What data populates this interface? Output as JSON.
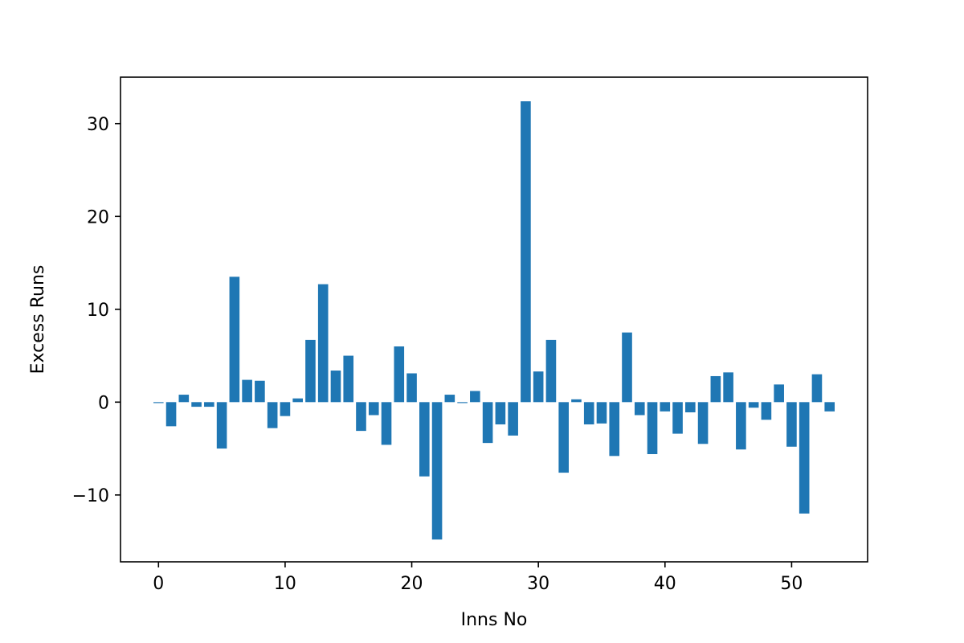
{
  "chart_data": {
    "type": "bar",
    "title": "",
    "xlabel": "Inns No",
    "ylabel": "Excess Runs",
    "xlim": [
      -3,
      56
    ],
    "ylim": [
      -17.2,
      35
    ],
    "xticks": [
      0,
      10,
      20,
      30,
      40,
      50
    ],
    "yticks": [
      -10,
      0,
      10,
      20,
      30
    ],
    "ytick_labels": [
      "−10",
      "0",
      "10",
      "20",
      "30"
    ],
    "bar_color": "#1f77b4",
    "grid": false,
    "legend": "none",
    "x": [
      0,
      1,
      2,
      3,
      4,
      5,
      6,
      7,
      8,
      9,
      10,
      11,
      12,
      13,
      14,
      15,
      16,
      17,
      18,
      19,
      20,
      21,
      22,
      23,
      24,
      25,
      26,
      27,
      28,
      29,
      30,
      31,
      32,
      33,
      34,
      35,
      36,
      37,
      38,
      39,
      40,
      41,
      42,
      43,
      44,
      45,
      46,
      47,
      48,
      49,
      50,
      51,
      52,
      53
    ],
    "values": [
      -0.1,
      -2.6,
      0.8,
      -0.5,
      -0.5,
      -5.0,
      13.5,
      2.4,
      2.3,
      -2.8,
      -1.5,
      0.4,
      6.7,
      12.7,
      3.4,
      5.0,
      -3.1,
      -1.4,
      -4.6,
      6.0,
      3.1,
      -8.0,
      -14.8,
      0.8,
      -0.1,
      1.2,
      -4.4,
      -2.4,
      -3.6,
      32.4,
      3.3,
      6.7,
      -7.6,
      0.3,
      -2.4,
      -2.3,
      -5.8,
      7.5,
      -1.4,
      -5.6,
      -1.0,
      -3.4,
      -1.1,
      -4.5,
      2.8,
      3.2,
      -5.1,
      -0.6,
      -1.9,
      1.9,
      -4.8,
      -12.0,
      3.0,
      -1.0
    ]
  }
}
